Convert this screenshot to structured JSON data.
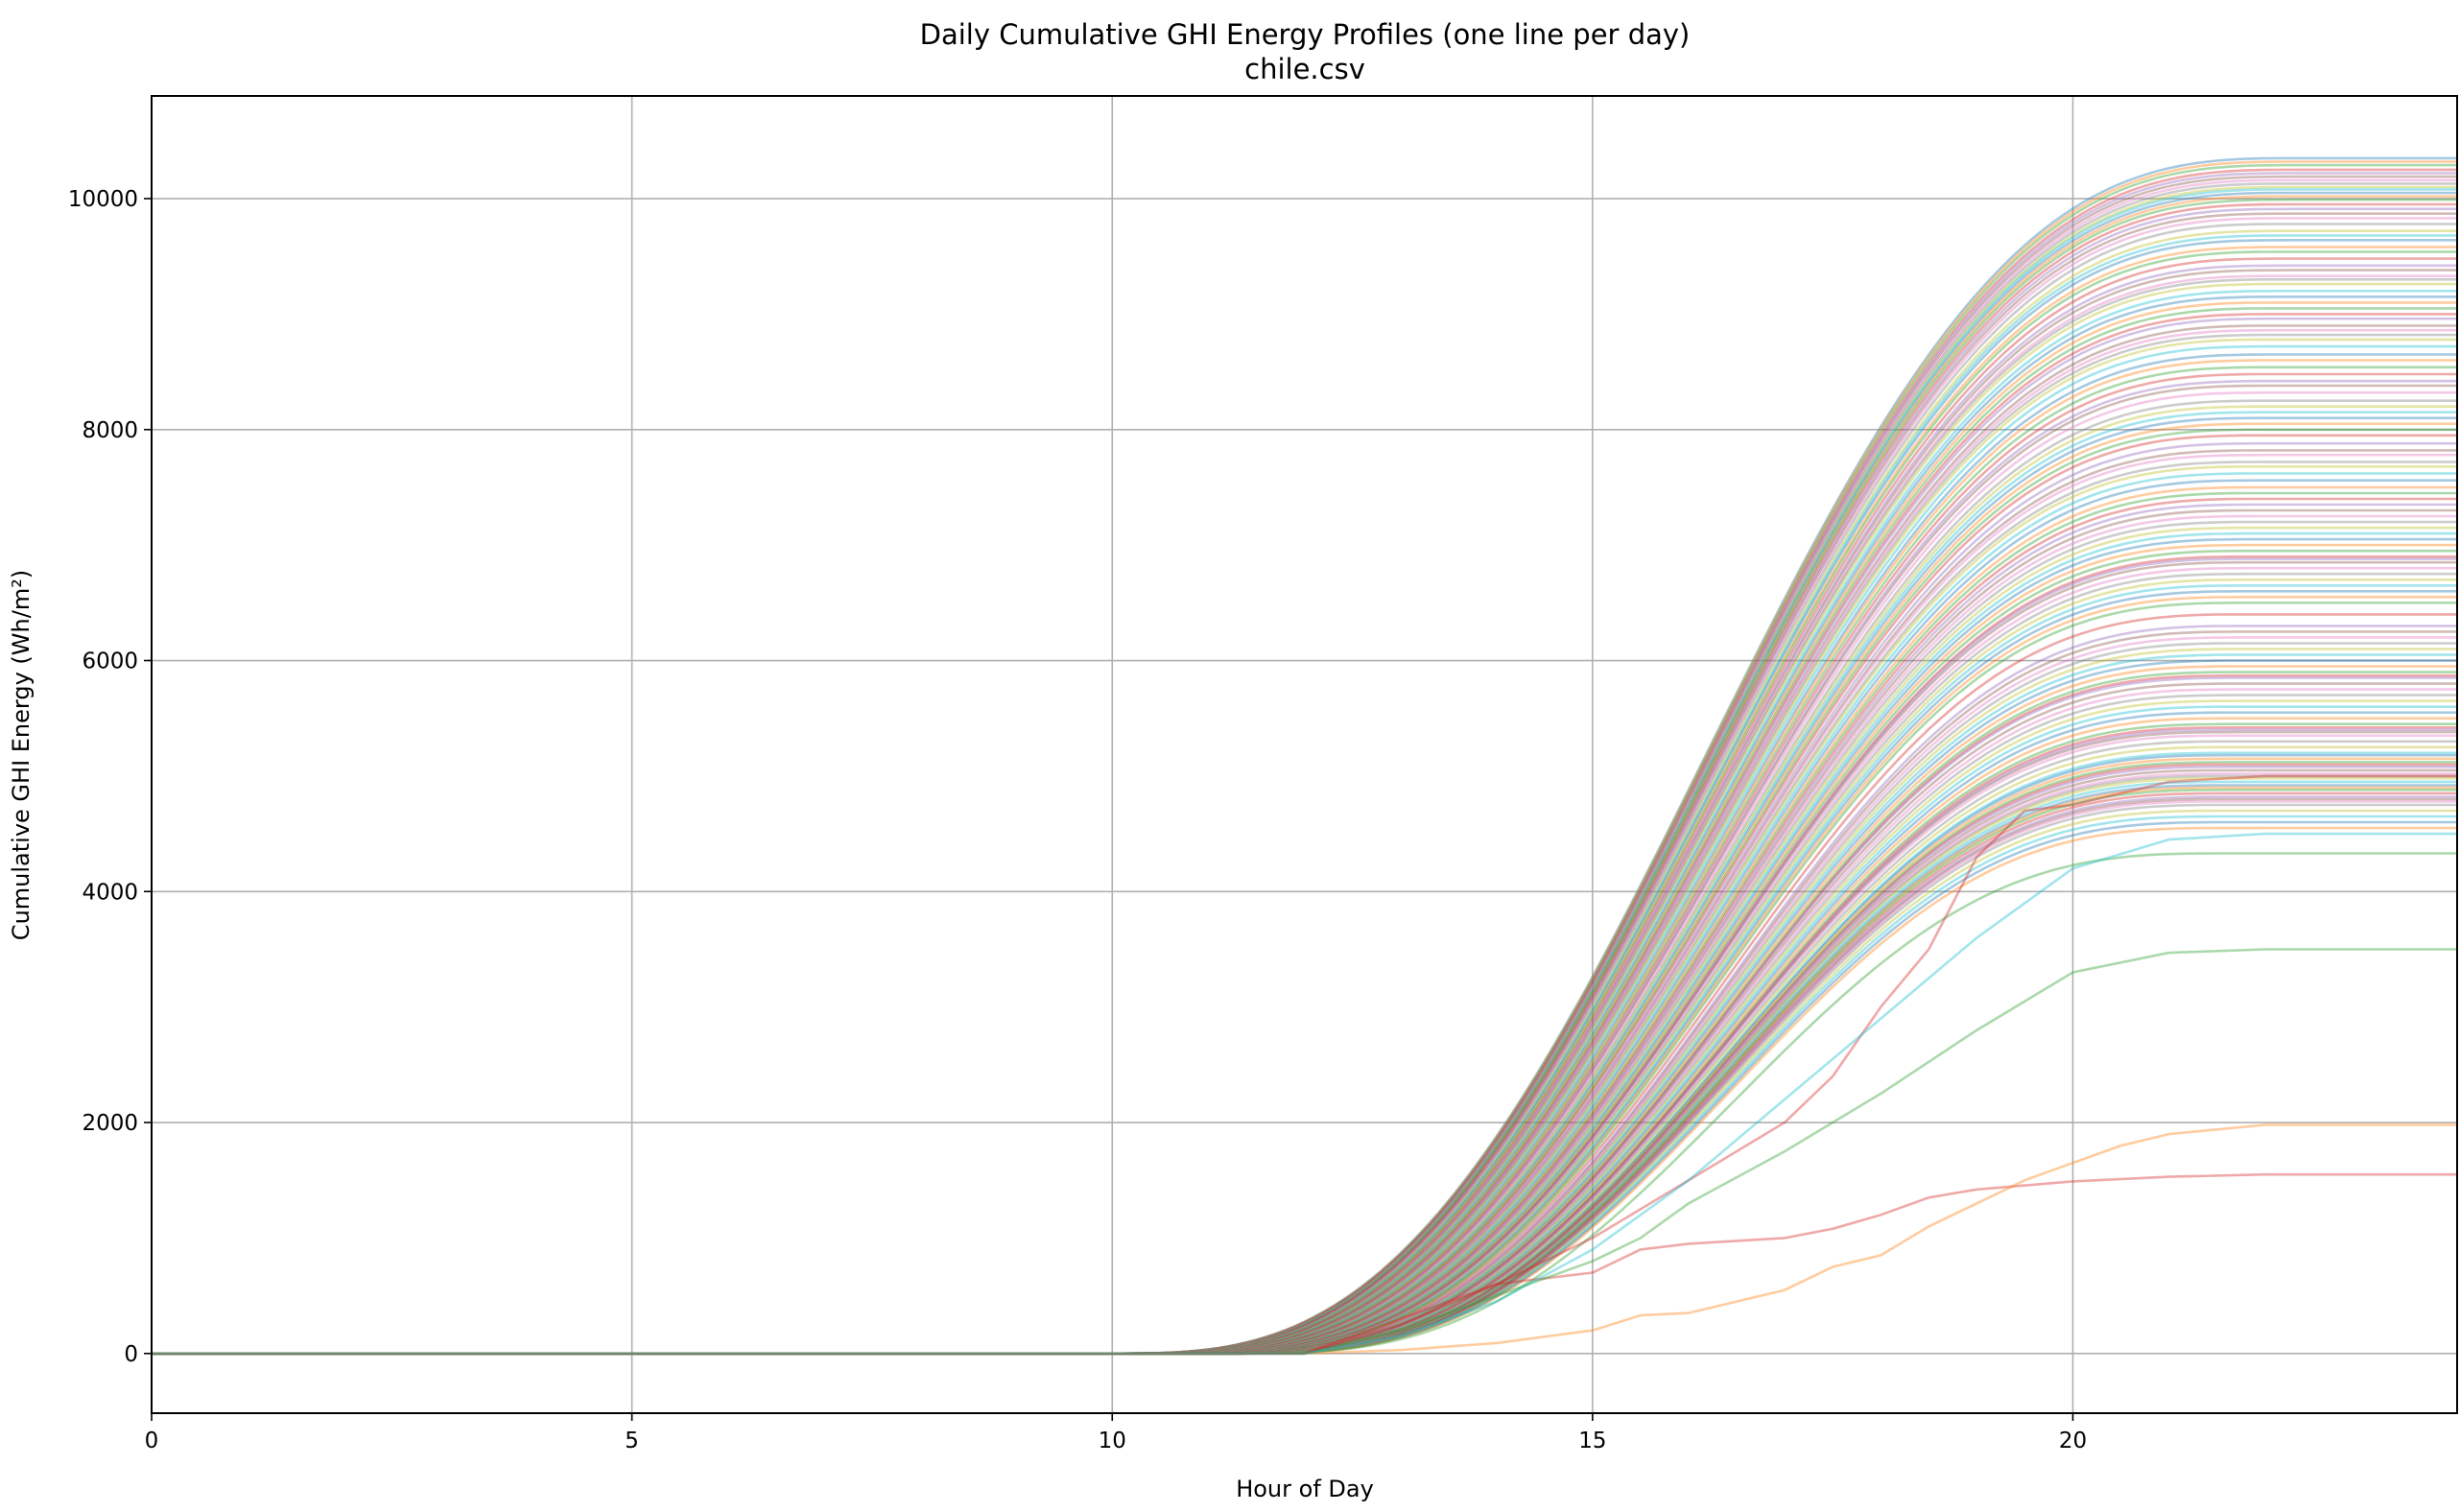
{
  "chart_data": {
    "type": "line",
    "title": "Daily Cumulative GHI Energy Profiles (one line per day)",
    "subtitle": "chile.csv",
    "xlabel": "Hour of Day",
    "ylabel": "Cumulative GHI Energy (Wh/m²)",
    "xlim": [
      0,
      24
    ],
    "ylim": [
      -517,
      10889
    ],
    "xticks": [
      0,
      5,
      10,
      15,
      20
    ],
    "yticks": [
      0,
      2000,
      4000,
      6000,
      8000,
      10000
    ],
    "grid": true,
    "legend": "none",
    "line_alpha": 0.4,
    "colors": [
      "#1f77b4",
      "#ff7f0e",
      "#2ca02c",
      "#d62728",
      "#9467bd",
      "#8c564b",
      "#e377c2",
      "#7f7f7f",
      "#bcbd22",
      "#17becf"
    ],
    "daily_totals_wh_m2": [
      10350,
      10320,
      10290,
      10250,
      10220,
      10190,
      10160,
      10130,
      10100,
      10080,
      10050,
      10020,
      9990,
      9950,
      9910,
      9870,
      9830,
      9780,
      9720,
      9680,
      9640,
      9580,
      9540,
      9480,
      9420,
      9380,
      9330,
      9300,
      9260,
      9200,
      9150,
      9100,
      9050,
      9000,
      8960,
      8900,
      8860,
      8820,
      8780,
      8720,
      8650,
      8600,
      8540,
      8480,
      8420,
      8380,
      8320,
      8250,
      8200,
      8150,
      8100,
      8050,
      8000,
      7950,
      7880,
      7820,
      7780,
      7720,
      7680,
      7620,
      7560,
      7500,
      7450,
      7400,
      7350,
      7300,
      7250,
      7200,
      7150,
      7100,
      7050,
      7000,
      6950,
      6900,
      6880,
      6850,
      6800,
      6750,
      6700,
      6650,
      6600,
      6550,
      6500,
      6400,
      6300,
      6250,
      6200,
      6150,
      6100,
      6050,
      6000,
      5950,
      5900,
      5870,
      5850,
      5800,
      5750,
      5700,
      5650,
      5600,
      5550,
      5500,
      5450,
      5420,
      5400,
      5380,
      5350,
      5300,
      5250,
      5200,
      5180,
      5150,
      5120,
      5100,
      5080,
      5050,
      5020,
      5000,
      4980,
      4950,
      4920,
      4900,
      4880,
      4850,
      4820,
      4800,
      4780,
      4750,
      4700,
      4650,
      4600,
      4550,
      4330
    ],
    "irregular_days": [
      {
        "color_index": 3,
        "hours": [
          0,
          12,
          13,
          14,
          15,
          15.5,
          16,
          17,
          17.5,
          18,
          18.5,
          19,
          20,
          21,
          22,
          24
        ],
        "values": [
          0,
          0,
          300,
          600,
          700,
          900,
          950,
          1000,
          1080,
          1200,
          1350,
          1420,
          1490,
          1530,
          1550,
          1550
        ]
      },
      {
        "color_index": 1,
        "hours": [
          0,
          12,
          13,
          14,
          15,
          15.5,
          16,
          16.5,
          17,
          17.5,
          18,
          18.5,
          19,
          19.5,
          20,
          20.5,
          21,
          22,
          24
        ],
        "values": [
          0,
          0,
          30,
          90,
          200,
          330,
          350,
          450,
          550,
          750,
          850,
          1100,
          1300,
          1500,
          1650,
          1800,
          1900,
          1980,
          1980
        ]
      },
      {
        "color_index": 2,
        "hours": [
          0,
          12,
          13,
          14,
          15,
          15.5,
          16,
          17,
          18,
          19,
          20,
          21,
          22,
          24
        ],
        "values": [
          0,
          0,
          200,
          500,
          800,
          1000,
          1300,
          1750,
          2250,
          2800,
          3300,
          3470,
          3500,
          3500
        ]
      },
      {
        "color_index": 3,
        "hours": [
          0,
          12,
          13,
          14,
          15,
          16,
          17,
          17.5,
          18,
          18.5,
          19,
          19.5,
          20,
          21,
          22,
          24
        ],
        "values": [
          0,
          0,
          250,
          600,
          1000,
          1500,
          2000,
          2400,
          3000,
          3500,
          4300,
          4700,
          4750,
          4950,
          5000,
          5000
        ]
      },
      {
        "color_index": 9,
        "hours": [
          0,
          12,
          13,
          14,
          15,
          16,
          17,
          18,
          19,
          20,
          21,
          22,
          24
        ],
        "values": [
          0,
          0,
          150,
          450,
          900,
          1500,
          2200,
          2900,
          3600,
          4200,
          4450,
          4500,
          4500
        ]
      }
    ]
  }
}
